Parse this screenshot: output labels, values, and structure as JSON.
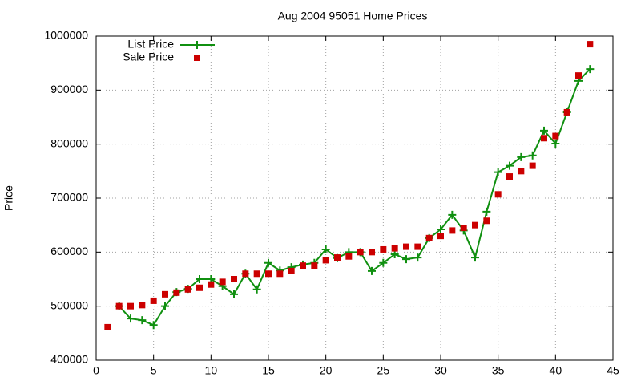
{
  "chart_data": {
    "type": "line",
    "title": "Aug 2004 95051 Home Prices",
    "y_label": "Price",
    "x": [
      1,
      2,
      3,
      4,
      5,
      6,
      7,
      8,
      9,
      10,
      11,
      12,
      13,
      14,
      15,
      16,
      17,
      18,
      19,
      20,
      21,
      22,
      23,
      24,
      25,
      26,
      27,
      28,
      29,
      30,
      31,
      32,
      33,
      34,
      35,
      36,
      37,
      38,
      39,
      40,
      41,
      42,
      43
    ],
    "series": [
      {
        "name": "List Price",
        "color": "#109010",
        "style": "linespoints",
        "values": [
          null,
          500000,
          477000,
          474000,
          465000,
          500000,
          526000,
          532000,
          550000,
          550000,
          537000,
          522000,
          560000,
          531000,
          580000,
          566000,
          572000,
          577000,
          580000,
          605000,
          589000,
          600000,
          600000,
          565000,
          580000,
          596000,
          587000,
          590000,
          626000,
          642000,
          669000,
          640000,
          590000,
          675000,
          748000,
          760000,
          776000,
          779000,
          825000,
          801000,
          859000,
          917000,
          939000
        ]
      },
      {
        "name": "Sale Price",
        "color": "#cc0000",
        "style": "points",
        "values": [
          461000,
          500000,
          500000,
          502000,
          510000,
          522000,
          525000,
          531000,
          534000,
          540000,
          545000,
          550000,
          560000,
          560000,
          560000,
          560000,
          565000,
          575000,
          575000,
          585000,
          590000,
          592000,
          600000,
          600000,
          605000,
          607000,
          610000,
          610000,
          626000,
          630000,
          640000,
          645000,
          650000,
          658000,
          707000,
          740000,
          750000,
          760000,
          811000,
          815000,
          859000,
          927000,
          985000
        ]
      }
    ],
    "xlim": [
      0,
      45
    ],
    "xticks": [
      0,
      5,
      10,
      15,
      20,
      25,
      30,
      35,
      40,
      45
    ],
    "ylim": [
      400000,
      1000000
    ],
    "yticks": [
      400000,
      500000,
      600000,
      700000,
      800000,
      900000,
      1000000
    ],
    "grid": true,
    "legend": "top-left"
  }
}
